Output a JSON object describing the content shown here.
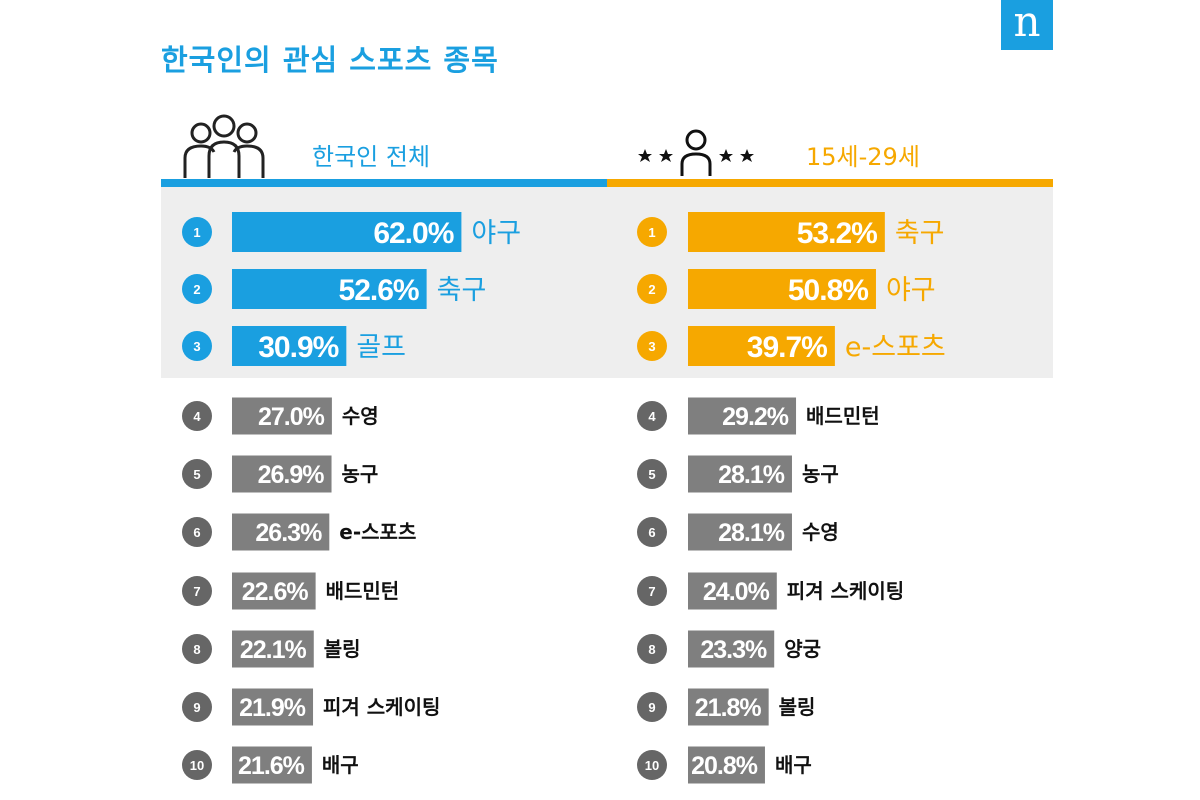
{
  "title": "한국인의 관심 스포츠 종목",
  "logo": "n",
  "colors": {
    "blue": "#1a9fe0",
    "orange": "#f6a800",
    "gray": "#7f7f7f",
    "circle_gray": "#666666",
    "panel": "#eeeeee"
  },
  "headers": {
    "all": "한국인 전체",
    "young": "15세-29세"
  },
  "chart_data": [
    {
      "type": "bar",
      "name": "한국인 전체",
      "unit": "%",
      "ranks": [
        "1",
        "2",
        "3",
        "4",
        "5",
        "6",
        "7",
        "8",
        "9",
        "10"
      ],
      "categories": [
        "야구",
        "축구",
        "골프",
        "수영",
        "농구",
        "e-스포츠",
        "배드민턴",
        "볼링",
        "피겨 스케이팅",
        "배구"
      ],
      "values": [
        62.0,
        52.6,
        30.9,
        27.0,
        26.9,
        26.3,
        22.6,
        22.1,
        21.9,
        21.6
      ],
      "labels": [
        "62.0%",
        "52.6%",
        "30.9%",
        "27.0%",
        "26.9%",
        "26.3%",
        "22.6%",
        "22.1%",
        "21.9%",
        "21.6%"
      ]
    },
    {
      "type": "bar",
      "name": "15세-29세",
      "unit": "%",
      "ranks": [
        "1",
        "2",
        "3",
        "4",
        "5",
        "6",
        "7",
        "8",
        "9",
        "10"
      ],
      "categories": [
        "축구",
        "야구",
        "e-스포츠",
        "배드민턴",
        "농구",
        "수영",
        "피겨 스케이팅",
        "양궁",
        "볼링",
        "배구"
      ],
      "values": [
        53.2,
        50.8,
        39.7,
        29.2,
        28.1,
        28.1,
        24.0,
        23.3,
        21.8,
        20.8
      ],
      "labels": [
        "53.2%",
        "50.8%",
        "39.7%",
        "29.2%",
        "28.1%",
        "28.1%",
        "24.0%",
        "23.3%",
        "21.8%",
        "20.8%"
      ]
    }
  ]
}
